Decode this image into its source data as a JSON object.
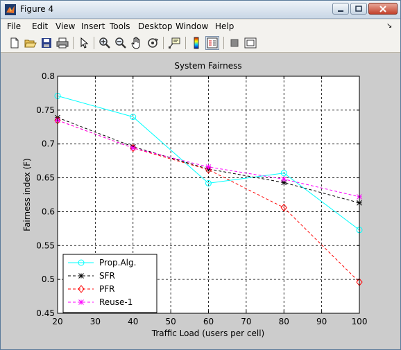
{
  "window": {
    "title": "Figure 4"
  },
  "menu": [
    "File",
    "Edit",
    "View",
    "Insert",
    "Tools",
    "Desktop",
    "Window",
    "Help"
  ],
  "toolbar": [
    {
      "name": "new-figure-icon"
    },
    {
      "name": "open-file-icon"
    },
    {
      "name": "save-icon"
    },
    {
      "name": "print-icon"
    },
    {
      "name": "edit-plot-arrow-icon"
    },
    {
      "name": "zoom-in-icon"
    },
    {
      "name": "zoom-out-icon"
    },
    {
      "name": "pan-hand-icon"
    },
    {
      "name": "rotate-3d-icon"
    },
    {
      "name": "data-cursor-icon"
    },
    {
      "name": "insert-colorbar-icon"
    },
    {
      "name": "insert-legend-icon"
    },
    {
      "name": "hide-plot-tools-icon"
    },
    {
      "name": "show-plot-tools-icon"
    }
  ],
  "chart_data": {
    "type": "line",
    "title": "System Fairness",
    "xlabel": "Traffic Load (users per cell)",
    "ylabel": "Fairness index (F)",
    "xlim": [
      20,
      100
    ],
    "ylim": [
      0.45,
      0.8
    ],
    "xticks": [
      "20",
      "30",
      "40",
      "50",
      "60",
      "70",
      "80",
      "90",
      "100"
    ],
    "yticks": [
      "0.45",
      "0.5",
      "0.55",
      "0.6",
      "0.65",
      "0.7",
      "0.75",
      "0.8"
    ],
    "grid": true,
    "legend_position": "bottom-left",
    "x": [
      20,
      40,
      60,
      80,
      100
    ],
    "series": [
      {
        "name": "Prop.Alg.",
        "values": [
          0.771,
          0.74,
          0.642,
          0.657,
          0.573
        ],
        "color": "#00ffff",
        "dash": "solid",
        "marker": "circle"
      },
      {
        "name": "SFR",
        "values": [
          0.739,
          0.696,
          0.663,
          0.643,
          0.613
        ],
        "color": "#000000",
        "dash": "dashed",
        "marker": "star"
      },
      {
        "name": "PFR",
        "values": [
          0.735,
          0.694,
          0.662,
          0.606,
          0.496
        ],
        "color": "#ff0000",
        "dash": "dashed",
        "marker": "diamond"
      },
      {
        "name": "Reuse-1",
        "values": [
          0.735,
          0.694,
          0.666,
          0.648,
          0.622
        ],
        "color": "#ff00ff",
        "dash": "dashed",
        "marker": "star"
      }
    ]
  }
}
